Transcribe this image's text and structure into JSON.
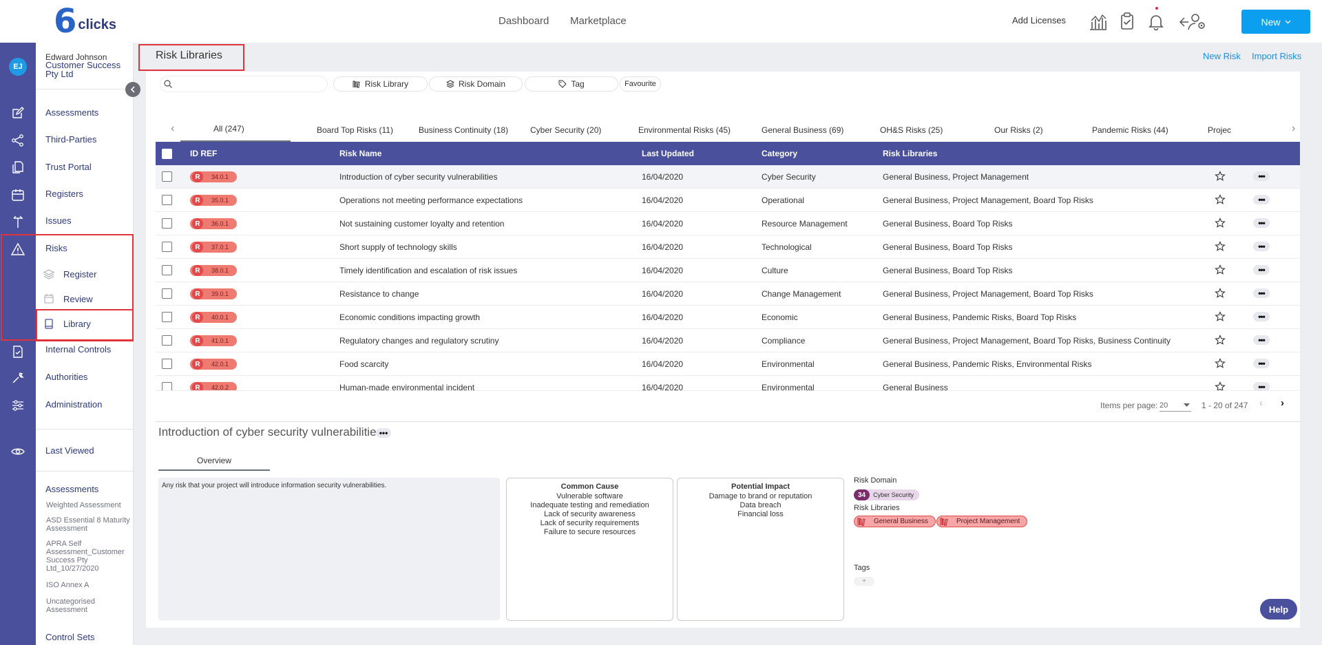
{
  "header": {
    "logo_six": "6",
    "logo_text": "clicks",
    "nav": [
      "Dashboard",
      "Marketplace"
    ],
    "add_licenses": "Add Licenses",
    "new_button": "New",
    "icons": [
      "analytics-icon",
      "clipboard-check-icon",
      "bell-icon",
      "users-settings-icon"
    ]
  },
  "user": {
    "initials": "EJ",
    "name": "Edward Johnson",
    "org": "Customer Success Pty Ltd"
  },
  "sidebar": {
    "items": [
      "Assessments",
      "Third-Parties",
      "Trust Portal",
      "Registers",
      "Issues",
      "Risks"
    ],
    "risk_sub": [
      "Register",
      "Review",
      "Library"
    ],
    "items_after": [
      "Internal Controls",
      "Authorities",
      "Administration"
    ],
    "last_viewed": "Last Viewed",
    "lv_assessments_head": "Assessments",
    "lv_assessments": [
      "Weighted Assessment",
      "ASD Essential 8 Maturity Assessment",
      "APRA Self Assessment_Customer Success Pty Ltd_10/27/2020",
      "ISO Annex A",
      "Uncategorised Assessment"
    ],
    "lv_control_sets_head": "Control Sets"
  },
  "page": {
    "title": "Risk Libraries",
    "new_risk": "New Risk",
    "import_risks": "Import Risks",
    "search_placeholder": "",
    "filters": [
      "Risk Library",
      "Risk Domain",
      "Tag",
      "Favourite"
    ]
  },
  "tabs": [
    "All (247)",
    "Board Top Risks (11)",
    "Business Continuity (18)",
    "Cyber Security (20)",
    "Environmental Risks (45)",
    "General Business (69)",
    "OH&S Risks (25)",
    "Our Risks (2)",
    "Pandemic Risks (44)",
    "Project"
  ],
  "table": {
    "headers": [
      "ID REF",
      "Risk Name",
      "Last Updated",
      "Category",
      "Risk Libraries"
    ],
    "rows": [
      {
        "id": "34.0.1",
        "name": "Introduction of cyber security vulnerabilities",
        "updated": "16/04/2020",
        "category": "Cyber Security",
        "libraries": "General Business, Project Management"
      },
      {
        "id": "35.0.1",
        "name": "Operations not meeting performance expectations",
        "updated": "16/04/2020",
        "category": "Operational",
        "libraries": "General Business, Project Management, Board Top Risks"
      },
      {
        "id": "36.0.1",
        "name": "Not sustaining customer loyalty and retention",
        "updated": "16/04/2020",
        "category": "Resource Management",
        "libraries": "General Business, Board Top Risks"
      },
      {
        "id": "37.0.1",
        "name": "Short supply of technology skills",
        "updated": "16/04/2020",
        "category": "Technological",
        "libraries": "General Business, Board Top Risks"
      },
      {
        "id": "38.0.1",
        "name": "Timely identification and escalation of risk issues",
        "updated": "16/04/2020",
        "category": "Culture",
        "libraries": "General Business, Board Top Risks"
      },
      {
        "id": "39.0.1",
        "name": "Resistance to change",
        "updated": "16/04/2020",
        "category": "Change Management",
        "libraries": "General Business, Project Management, Board Top Risks"
      },
      {
        "id": "40.0.1",
        "name": "Economic conditions impacting growth",
        "updated": "16/04/2020",
        "category": "Economic",
        "libraries": "General Business, Pandemic Risks, Board Top Risks"
      },
      {
        "id": "41.0.1",
        "name": "Regulatory changes and regulatory scrutiny",
        "updated": "16/04/2020",
        "category": "Compliance",
        "libraries": "General Business, Project Management, Board Top Risks, Business Continuity"
      },
      {
        "id": "42.0.1",
        "name": "Food scarcity",
        "updated": "16/04/2020",
        "category": "Environmental",
        "libraries": "General Business, Pandemic Risks, Environmental Risks"
      },
      {
        "id": "42.0.2",
        "name": "Human-made environmental incident",
        "updated": "16/04/2020",
        "category": "Environmental",
        "libraries": "General Business"
      }
    ],
    "badge_letter": "R"
  },
  "pager": {
    "label": "Items per page:",
    "per_page": "20",
    "range": "1 - 20 of 247"
  },
  "detail": {
    "title": "Introduction of cyber security vulnerabilities",
    "tab": "Overview",
    "description": "Any risk that your project will introduce information security vulnerabilities.",
    "common_cause_head": "Common Cause",
    "common_cause": [
      "Vulnerable software",
      "Inadequate testing and remediation",
      "Lack of security awareness",
      "Lack of security requirements",
      "Failure to secure resources"
    ],
    "impact_head": "Potential Impact",
    "impact": [
      "Damage to brand or reputation",
      "Data breach",
      "Financial loss"
    ],
    "risk_domain_label": "Risk Domain",
    "domain_num": "34",
    "domain_name": "Cyber Security",
    "risk_libraries_label": "Risk Libraries",
    "libraries": [
      "General Business",
      "Project Management"
    ],
    "tags_label": "Tags",
    "tag_add": "+"
  },
  "help": "Help",
  "colors": {
    "brand": "#4a509c",
    "accent": "#0c9fef",
    "highlight": "#e0343a",
    "risk_badge": "#ee7a72"
  }
}
